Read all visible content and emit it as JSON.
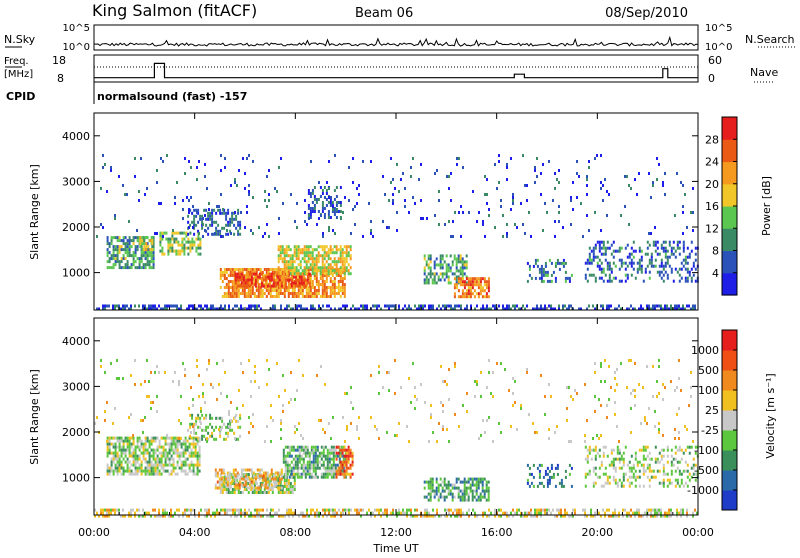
{
  "header": {
    "station": "King Salmon (fitACF)",
    "beam": "Beam 06",
    "date": "08/Sep/2010"
  },
  "top_panels": {
    "nsky_label": "N.Sky",
    "nsearch_label": "N.Search",
    "nsky_ticks": [
      "10^5",
      "10^0"
    ],
    "nsky_ticks_right": [
      "10^5",
      "10^0"
    ],
    "freq_label_line1": "Freq.",
    "freq_label_line2": "[MHz]",
    "freq_ticks": [
      "18",
      "8"
    ],
    "nave_label": "Nave",
    "nave_ticks": [
      "60",
      "0"
    ],
    "cpid_label": "CPID",
    "cpid_text": "normalsound (fast) -157",
    "freq_trace": [
      {
        "t": 0.0,
        "v": 9.3
      },
      {
        "t": 2.4,
        "v": 9.3
      },
      {
        "t": 2.4,
        "v": 17.2
      },
      {
        "t": 2.8,
        "v": 17.2
      },
      {
        "t": 2.8,
        "v": 9.3
      },
      {
        "t": 16.7,
        "v": 9.3
      },
      {
        "t": 16.7,
        "v": 11.2
      },
      {
        "t": 17.1,
        "v": 11.2
      },
      {
        "t": 17.1,
        "v": 9.3
      },
      {
        "t": 22.6,
        "v": 9.3
      },
      {
        "t": 22.6,
        "v": 14.3
      },
      {
        "t": 22.8,
        "v": 14.3
      },
      {
        "t": 22.8,
        "v": 9.3
      },
      {
        "t": 24.0,
        "v": 9.3
      }
    ]
  },
  "chart_data": [
    {
      "type": "heatmap",
      "name": "power",
      "ylabel": "Slant Range [km]",
      "ylim": [
        180,
        4500
      ],
      "xlim": [
        0,
        24
      ],
      "y_ticks": [
        "1000",
        "2000",
        "3000",
        "4000"
      ],
      "colorbar_label": "Power [dB]",
      "colorbar_ticks": [
        "4",
        "8",
        "12",
        "16",
        "20",
        "24",
        "28"
      ],
      "colors": [
        "#1e1ee6",
        "#2a52b8",
        "#3b8a66",
        "#5bc650",
        "#f0c628",
        "#f59a1e",
        "#ea5a14",
        "#e61e1e"
      ],
      "regions": [
        {
          "t0": 0.0,
          "t1": 24.0,
          "r0": 180,
          "r1": 300,
          "level": 0.15,
          "density": 0.55
        },
        {
          "t0": 0.5,
          "t1": 2.4,
          "r0": 1100,
          "r1": 1800,
          "level": 0.35,
          "density": 0.7
        },
        {
          "t0": 1.8,
          "t1": 2.3,
          "r0": 1500,
          "r1": 1800,
          "level": 0.5,
          "density": 0.6
        },
        {
          "t0": 2.6,
          "t1": 4.2,
          "r0": 1400,
          "r1": 1900,
          "level": 0.45,
          "density": 0.6
        },
        {
          "t0": 3.7,
          "t1": 5.8,
          "r0": 1850,
          "r1": 2400,
          "level": 0.2,
          "density": 0.45
        },
        {
          "t0": 5.0,
          "t1": 10.0,
          "r0": 500,
          "r1": 1100,
          "level": 0.7,
          "density": 0.8
        },
        {
          "t0": 5.6,
          "t1": 8.6,
          "r0": 700,
          "r1": 1000,
          "level": 0.85,
          "density": 0.75
        },
        {
          "t0": 7.3,
          "t1": 10.2,
          "r0": 1000,
          "r1": 1600,
          "level": 0.55,
          "density": 0.7
        },
        {
          "t0": 8.5,
          "t1": 9.8,
          "r0": 2200,
          "r1": 2900,
          "level": 0.2,
          "density": 0.4
        },
        {
          "t0": 13.1,
          "t1": 14.8,
          "r0": 800,
          "r1": 1400,
          "level": 0.35,
          "density": 0.55
        },
        {
          "t0": 14.3,
          "t1": 15.7,
          "r0": 450,
          "r1": 900,
          "level": 0.75,
          "density": 0.65
        },
        {
          "t0": 17.2,
          "t1": 19.0,
          "r0": 800,
          "r1": 1300,
          "level": 0.25,
          "density": 0.35
        },
        {
          "t0": 19.5,
          "t1": 24.0,
          "r0": 800,
          "r1": 1700,
          "level": 0.22,
          "density": 0.3
        },
        {
          "t0": 0.0,
          "t1": 24.0,
          "r0": 1800,
          "r1": 3600,
          "level": 0.15,
          "density": 0.04
        }
      ]
    },
    {
      "type": "heatmap",
      "name": "velocity",
      "ylabel": "Slant Range [km]",
      "ylim": [
        180,
        4500
      ],
      "xlim": [
        0,
        24
      ],
      "y_ticks": [
        "1000",
        "2000",
        "3000",
        "4000"
      ],
      "colorbar_label": "Velocity [m s⁻¹]",
      "colorbar_ticks": [
        "1000",
        "500",
        "100",
        "25",
        "-25",
        "-100",
        "-500",
        "-1000"
      ],
      "colors": [
        "#1e3cc8",
        "#2b6aa8",
        "#3a8f5a",
        "#5cc63c",
        "#c8c8c8",
        "#f0c020",
        "#f08a1e",
        "#f05014",
        "#e61e1e"
      ],
      "regions": [
        {
          "t0": 0.0,
          "t1": 24.0,
          "r0": 180,
          "r1": 320,
          "level": 0.55,
          "density": 0.5
        },
        {
          "t0": 0.5,
          "t1": 4.2,
          "r0": 1100,
          "r1": 1900,
          "level": 0.45,
          "density": 0.7
        },
        {
          "t0": 3.7,
          "t1": 5.8,
          "r0": 1850,
          "r1": 2400,
          "level": 0.45,
          "density": 0.4
        },
        {
          "t0": 5.0,
          "t1": 8.0,
          "r0": 700,
          "r1": 1100,
          "level": 0.45,
          "density": 0.75
        },
        {
          "t0": 4.8,
          "t1": 7.5,
          "r0": 800,
          "r1": 1200,
          "level": 0.62,
          "density": 0.55
        },
        {
          "t0": 7.5,
          "t1": 10.0,
          "r0": 1000,
          "r1": 1700,
          "level": 0.35,
          "density": 0.75
        },
        {
          "t0": 9.6,
          "t1": 10.3,
          "r0": 1000,
          "r1": 1700,
          "level": 0.8,
          "density": 0.6
        },
        {
          "t0": 13.1,
          "t1": 15.7,
          "r0": 500,
          "r1": 1000,
          "level": 0.3,
          "density": 0.55
        },
        {
          "t0": 17.2,
          "t1": 19.0,
          "r0": 800,
          "r1": 1300,
          "level": 0.2,
          "density": 0.3
        },
        {
          "t0": 19.5,
          "t1": 24.0,
          "r0": 800,
          "r1": 1700,
          "level": 0.45,
          "density": 0.3
        },
        {
          "t0": 0.0,
          "t1": 24.0,
          "r0": 1800,
          "r1": 3600,
          "level": 0.55,
          "density": 0.04
        }
      ]
    }
  ],
  "x_axis": {
    "label": "Time UT",
    "ticks": [
      "00:00",
      "04:00",
      "08:00",
      "12:00",
      "16:00",
      "20:00",
      "00:00"
    ]
  }
}
